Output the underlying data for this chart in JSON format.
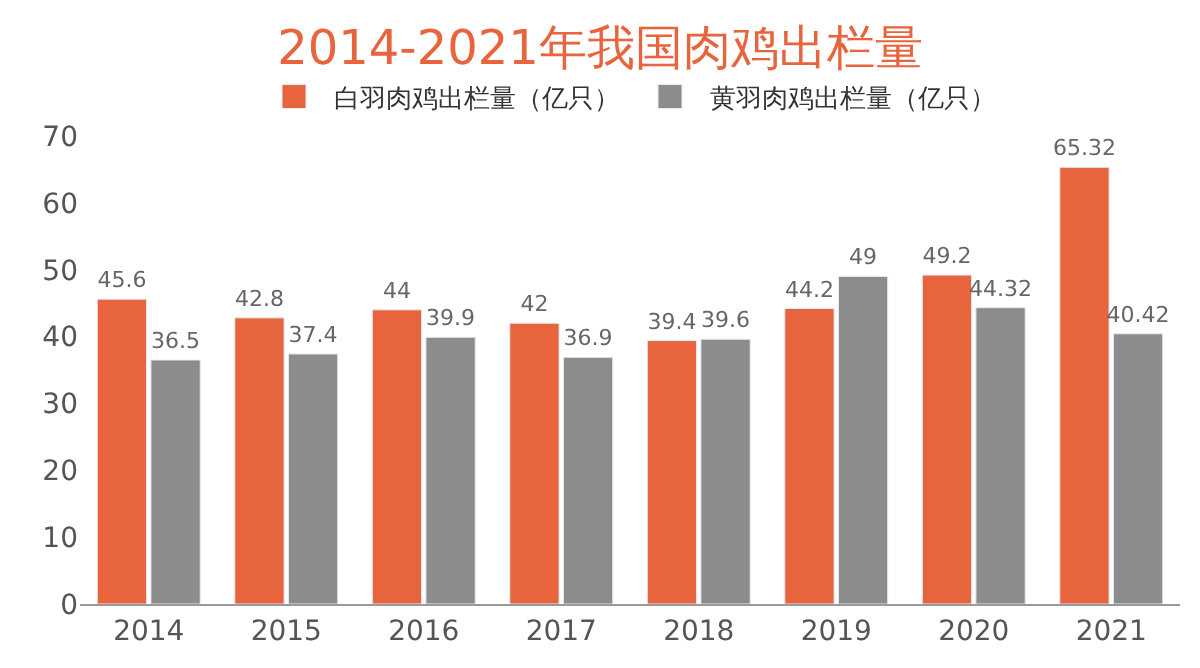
{
  "chart_data": {
    "type": "bar",
    "title": "2014-2021年我国肉鸡出栏量",
    "categories": [
      "2014",
      "2015",
      "2016",
      "2017",
      "2018",
      "2019",
      "2020",
      "2021"
    ],
    "series": [
      {
        "name": "白羽肉鸡出栏量（亿只）",
        "color": "#e8643c",
        "values": [
          45.6,
          42.8,
          44,
          42,
          39.4,
          44.2,
          49.2,
          65.32
        ]
      },
      {
        "name": "黄羽肉鸡出栏量（亿只）",
        "color": "#8c8c8c",
        "values": [
          36.5,
          37.4,
          39.9,
          36.9,
          39.6,
          49,
          44.32,
          40.42
        ]
      }
    ],
    "ylim": [
      0,
      70
    ],
    "yticks": [
      0,
      10,
      20,
      30,
      40,
      50,
      60,
      70
    ],
    "legend": "top",
    "data_labels": true
  }
}
